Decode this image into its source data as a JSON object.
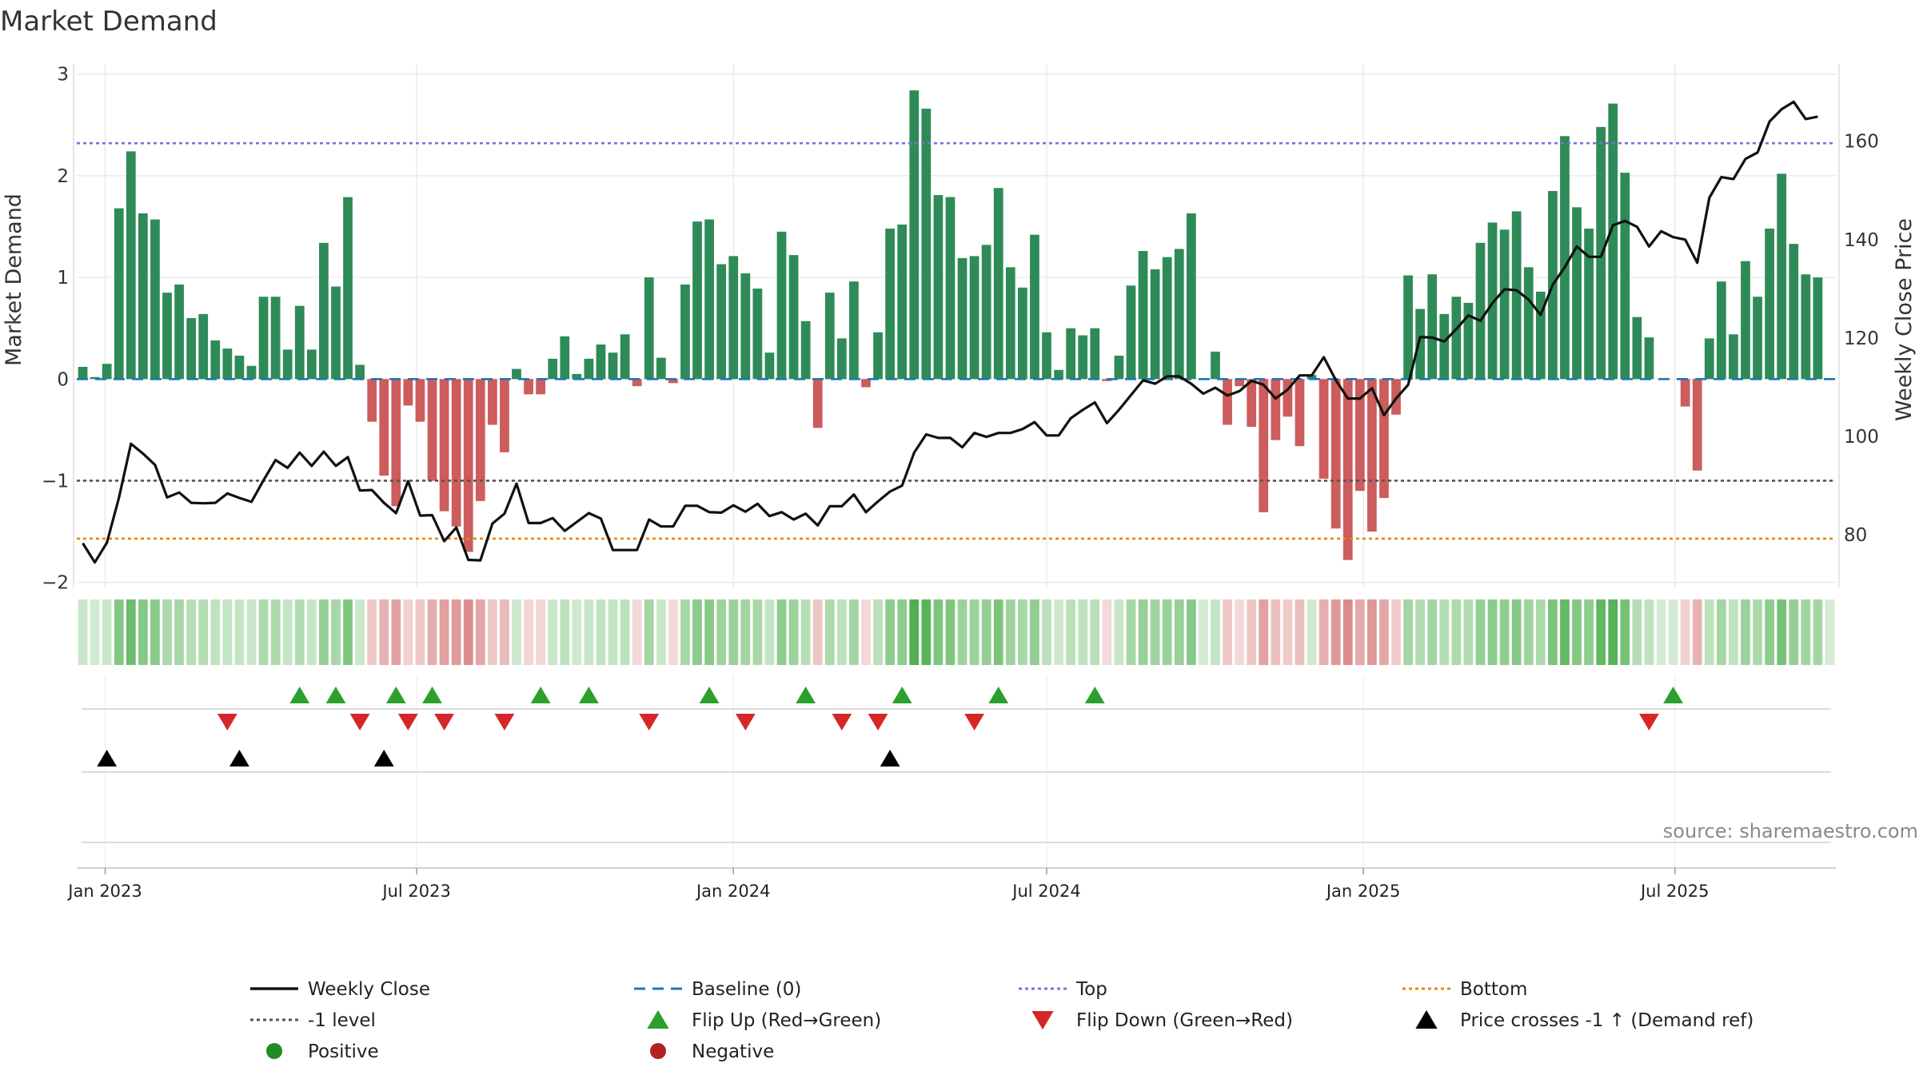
{
  "chart_data": {
    "type": "bar",
    "title": "Market Demand",
    "ylabel": "Market Demand",
    "y2label": "Weekly Close Price",
    "ylim": [
      -2.05,
      3.1
    ],
    "y2lim": [
      69.3,
      175.7
    ],
    "yticks": [
      -2,
      -1,
      0,
      1,
      2,
      3
    ],
    "y2ticks": [
      80,
      100,
      120,
      140,
      160
    ],
    "reference_lines": {
      "top": 2.32,
      "bottom": -1.57,
      "minus_one": -1.0,
      "baseline": 0
    },
    "x_start": "2022-12-19",
    "week_count": 146,
    "x_ticks": [
      {
        "label": "Jan 2023",
        "date": "2023-01-01"
      },
      {
        "label": "Jul 2023",
        "date": "2023-07-01"
      },
      {
        "label": "Jan 2024",
        "date": "2024-01-01"
      },
      {
        "label": "Jul 2024",
        "date": "2024-07-01"
      },
      {
        "label": "Jan 2025",
        "date": "2025-01-01"
      },
      {
        "label": "Jul 2025",
        "date": "2025-07-01"
      }
    ],
    "series": [
      {
        "name": "Market Demand",
        "type": "bar",
        "values": [
          0.12,
          0.02,
          0.15,
          1.68,
          2.24,
          1.63,
          1.57,
          0.85,
          0.93,
          0.6,
          0.64,
          0.38,
          0.3,
          0.23,
          0.13,
          0.81,
          0.81,
          0.29,
          0.72,
          0.29,
          1.34,
          0.91,
          1.79,
          0.14,
          -0.42,
          -0.95,
          -1.25,
          -0.26,
          -0.42,
          -1.0,
          -1.3,
          -1.45,
          -1.7,
          -1.2,
          -0.45,
          -0.72,
          0.1,
          -0.15,
          -0.15,
          0.2,
          0.42,
          0.05,
          0.2,
          0.34,
          0.26,
          0.44,
          -0.07,
          1.0,
          0.21,
          -0.04,
          0.93,
          1.55,
          1.57,
          1.13,
          1.21,
          1.04,
          0.89,
          0.26,
          1.45,
          1.22,
          0.57,
          -0.48,
          0.85,
          0.4,
          0.96,
          -0.08,
          0.46,
          1.48,
          1.52,
          2.84,
          2.66,
          1.81,
          1.79,
          1.19,
          1.21,
          1.32,
          1.88,
          1.1,
          0.9,
          1.42,
          0.46,
          0.09,
          0.5,
          0.43,
          0.5,
          -0.02,
          0.23,
          0.92,
          1.26,
          1.08,
          1.2,
          1.28,
          1.63,
          0.0,
          0.27,
          -0.45,
          -0.07,
          -0.47,
          -1.31,
          -0.6,
          -0.37,
          -0.66,
          0.04,
          -0.98,
          -1.47,
          -1.78,
          -1.1,
          -1.5,
          -1.17,
          -0.35,
          1.02,
          0.69,
          1.03,
          0.64,
          0.81,
          0.75,
          1.34,
          1.54,
          1.47,
          1.65,
          1.1,
          0.86,
          1.85,
          2.39,
          1.69,
          1.48,
          2.48,
          2.71,
          2.03,
          0.61,
          0.41,
          0.0,
          0.0,
          -0.27,
          -0.9,
          0.4,
          0.96,
          0.44,
          1.16,
          0.81,
          1.48,
          2.02,
          1.33,
          1.03,
          1.0,
          0.0
        ]
      },
      {
        "name": "Weekly Close",
        "type": "line",
        "values": [
          78.3,
          74.4,
          78.4,
          87.5,
          98.5,
          96.5,
          94.2,
          87.6,
          88.6,
          86.5,
          86.4,
          86.5,
          88.4,
          87.5,
          86.7,
          91.1,
          95.2,
          93.6,
          96.7,
          94.0,
          96.9,
          94.0,
          95.8,
          89.0,
          89.1,
          86.5,
          84.4,
          90.9,
          83.9,
          84.0,
          78.7,
          81.5,
          74.9,
          74.8,
          82.3,
          84.3,
          90.4,
          82.4,
          82.4,
          83.4,
          80.8,
          82.6,
          84.4,
          83.3,
          76.9,
          76.9,
          76.9,
          83.1,
          81.7,
          81.7,
          85.9,
          85.9,
          84.6,
          84.5,
          86.0,
          84.7,
          86.3,
          83.8,
          84.6,
          83.1,
          84.3,
          81.9,
          85.8,
          85.8,
          88.2,
          84.6,
          86.8,
          88.8,
          90.0,
          96.7,
          100.4,
          99.7,
          99.7,
          97.8,
          100.7,
          99.9,
          100.7,
          100.7,
          101.5,
          102.9,
          100.2,
          100.2,
          103.7,
          105.4,
          106.9,
          102.7,
          105.4,
          108.4,
          111.4,
          110.7,
          112.2,
          112.2,
          110.7,
          108.7,
          109.9,
          108.3,
          109.2,
          111.3,
          110.5,
          107.7,
          109.5,
          112.4,
          112.4,
          116.1,
          111.4,
          107.7,
          107.7,
          109.8,
          104.3,
          107.7,
          110.5,
          120.2,
          120.1,
          119.3,
          121.8,
          124.6,
          123.5,
          127.1,
          129.9,
          129.7,
          127.8,
          124.7,
          130.8,
          134.4,
          138.6,
          136.5,
          136.5,
          142.9,
          143.8,
          142.6,
          138.6,
          141.7,
          140.5,
          140.0,
          135.3,
          148.5,
          152.7,
          152.3,
          156.4,
          157.7,
          164.0,
          166.5,
          168.0,
          164.5,
          165.0
        ]
      }
    ],
    "flip_up_weeks": [
      18,
      21,
      26,
      29,
      38,
      42,
      52,
      60,
      68,
      76,
      84,
      132
    ],
    "flip_down_weeks": [
      12,
      23,
      27,
      30,
      35,
      47,
      55,
      63,
      66,
      74,
      130
    ],
    "price_cross_weeks": [
      2,
      13,
      25,
      67
    ],
    "legend": [
      {
        "label": "Weekly Close",
        "marker": "solid-line"
      },
      {
        "label": "Baseline (0)",
        "marker": "dashed-line"
      },
      {
        "label": "Top",
        "marker": "dotted-line"
      },
      {
        "label": "Bottom",
        "marker": "dotted-line"
      },
      {
        "label": "-1 level",
        "marker": "dotted-line"
      },
      {
        "label": "Flip Up (Red→Green)",
        "marker": "triangle-up"
      },
      {
        "label": "Flip Down (Green→Red)",
        "marker": "triangle-down"
      },
      {
        "label": "Price crosses -1 ↑ (Demand ref)",
        "marker": "triangle-up"
      },
      {
        "label": "Positive",
        "marker": "circle"
      },
      {
        "label": "Negative",
        "marker": "circle"
      }
    ],
    "source": "source: sharemaestro.com",
    "colors": {
      "positive_bar": "#2e8b57",
      "negative_bar": "#cd5c5c",
      "price_line": "#111111",
      "baseline": "#1f77b4",
      "top_line": "#7b72d9",
      "bottom_line": "#e08b00",
      "minus_one_line": "#555555",
      "flip_up": "#2ca02c",
      "flip_down": "#d62728",
      "cross": "#000000",
      "positive_dot": "#228b22",
      "negative_dot": "#b22222",
      "grid": "#e6e6e6"
    }
  }
}
